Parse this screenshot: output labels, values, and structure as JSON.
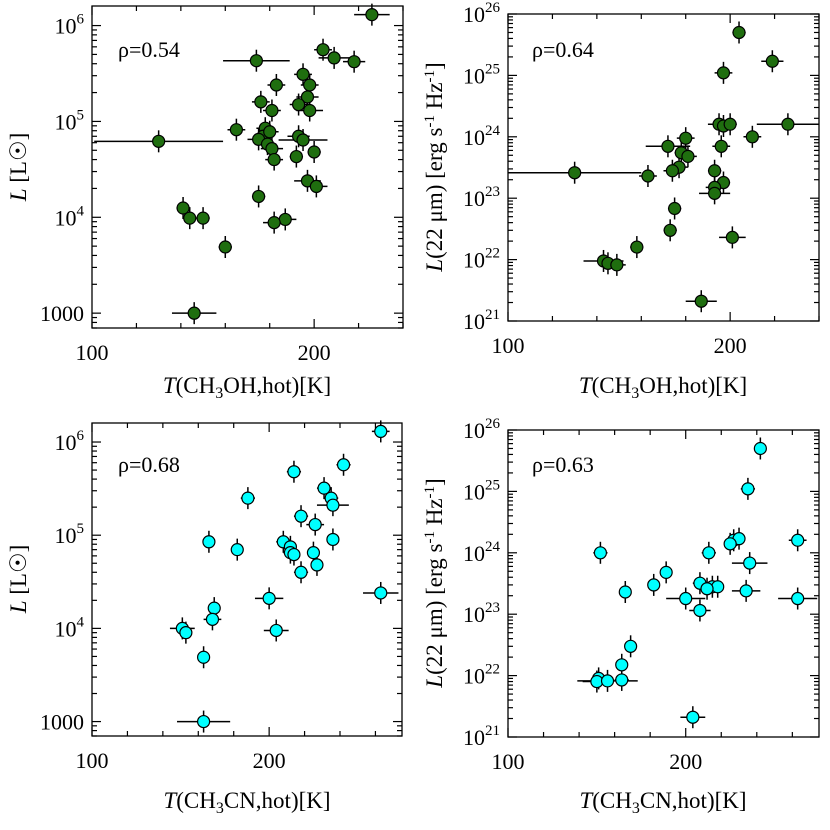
{
  "chart_data": [
    {
      "type": "scatter",
      "annotation": "ρ=0.54",
      "xlabel_italic": "T",
      "xlabel_pre": "(CH",
      "xlabel_sub": "3",
      "xlabel_post": "OH,hot)[K]",
      "ylabel_italic": "L",
      "ylabel_rest": " [L",
      "ylabel_sun": "☉",
      "ylabel_end": "]",
      "xscale": "linear",
      "yscale": "log",
      "xlim": [
        100,
        240
      ],
      "ylim": [
        700,
        1600000
      ],
      "xticks": [
        {
          "v": 100,
          "label": "100"
        },
        {
          "v": 200,
          "label": "200"
        }
      ],
      "yticks": [
        {
          "v": 1000,
          "base": "1000",
          "exp": ""
        },
        {
          "v": 10000,
          "base": "10",
          "exp": "4"
        },
        {
          "v": 100000,
          "base": "10",
          "exp": "5"
        },
        {
          "v": 1000000,
          "base": "10",
          "exp": "6"
        }
      ],
      "marker_color": "#1f6e0f",
      "points": [
        {
          "x": 226,
          "y": 1300000,
          "xerr": 8
        },
        {
          "x": 204,
          "y": 560000,
          "xerr": 4
        },
        {
          "x": 209,
          "y": 460000,
          "xerr": 7
        },
        {
          "x": 218,
          "y": 420000,
          "xerr": 5
        },
        {
          "x": 174,
          "y": 430000,
          "xerr": 15
        },
        {
          "x": 195,
          "y": 310000,
          "xerr": 4
        },
        {
          "x": 198,
          "y": 240000,
          "xerr": 4
        },
        {
          "x": 183,
          "y": 240000,
          "xerr": 4
        },
        {
          "x": 197,
          "y": 180000,
          "xerr": 5
        },
        {
          "x": 176,
          "y": 160000,
          "xerr": 4
        },
        {
          "x": 193,
          "y": 150000,
          "xerr": 4
        },
        {
          "x": 198,
          "y": 130000,
          "xerr": 6
        },
        {
          "x": 181,
          "y": 130000,
          "xerr": 4
        },
        {
          "x": 165,
          "y": 82000,
          "xerr": 4
        },
        {
          "x": 178,
          "y": 85000,
          "xerr": 4
        },
        {
          "x": 177,
          "y": 70000,
          "xerr": 4
        },
        {
          "x": 180,
          "y": 78000,
          "xerr": 4
        },
        {
          "x": 175,
          "y": 65000,
          "xerr": 5
        },
        {
          "x": 193,
          "y": 70000,
          "xerr": 5
        },
        {
          "x": 195,
          "y": 64000,
          "xerr": 11
        },
        {
          "x": 130,
          "y": 62000,
          "xerr": 29
        },
        {
          "x": 179,
          "y": 58000,
          "xerr": 4
        },
        {
          "x": 181,
          "y": 52000,
          "xerr": 5
        },
        {
          "x": 200,
          "y": 48000,
          "xerr": 3
        },
        {
          "x": 192,
          "y": 43000,
          "xerr": 3
        },
        {
          "x": 182,
          "y": 40000,
          "xerr": 4
        },
        {
          "x": 197,
          "y": 24000,
          "xerr": 6
        },
        {
          "x": 201,
          "y": 21000,
          "xerr": 5
        },
        {
          "x": 175,
          "y": 16500,
          "xerr": 3
        },
        {
          "x": 141,
          "y": 12500,
          "xerr": 3
        },
        {
          "x": 144,
          "y": 9800,
          "xerr": 3
        },
        {
          "x": 150,
          "y": 9800,
          "xerr": 3
        },
        {
          "x": 187,
          "y": 9500,
          "xerr": 5
        },
        {
          "x": 182,
          "y": 8800,
          "xerr": 5
        },
        {
          "x": 160,
          "y": 4900,
          "xerr": 3
        },
        {
          "x": 146,
          "y": 1000,
          "xerr": 10
        }
      ]
    },
    {
      "type": "scatter",
      "annotation": "ρ=0.64",
      "xlabel_italic": "T",
      "xlabel_pre": "(CH",
      "xlabel_sub": "3",
      "xlabel_post": "OH,hot)[K]",
      "ylabel_italic": "L",
      "ylabel_mid": "(22 μm) [erg s",
      "ylabel_exp1": "-1",
      "ylabel_mid2": " Hz",
      "ylabel_exp2": "-1",
      "ylabel_end": "]",
      "xscale": "linear",
      "yscale": "log",
      "xlim": [
        100,
        240
      ],
      "ylim": [
        1e+21,
        1e+26
      ],
      "xticks": [
        {
          "v": 100,
          "label": "100"
        },
        {
          "v": 200,
          "label": "200"
        }
      ],
      "yticks": [
        {
          "v": 1e+21,
          "base": "10",
          "exp": "21"
        },
        {
          "v": 1e+22,
          "base": "10",
          "exp": "22"
        },
        {
          "v": 1e+23,
          "base": "10",
          "exp": "23"
        },
        {
          "v": 1e+24,
          "base": "10",
          "exp": "24"
        },
        {
          "v": 1e+25,
          "base": "10",
          "exp": "25"
        },
        {
          "v": 1e+26,
          "base": "10",
          "exp": "26"
        }
      ],
      "marker_color": "#1f6e0f",
      "points": [
        {
          "x": 204,
          "y": 5e+25,
          "xerr": 3
        },
        {
          "x": 219,
          "y": 1.7e+25,
          "xerr": 5
        },
        {
          "x": 197,
          "y": 1.1e+25,
          "xerr": 4
        },
        {
          "x": 226,
          "y": 1.6e+24,
          "xerr": 14
        },
        {
          "x": 195,
          "y": 1.6e+24,
          "xerr": 5
        },
        {
          "x": 197,
          "y": 1.5e+24,
          "xerr": 3
        },
        {
          "x": 200,
          "y": 1.6e+24,
          "xerr": 3
        },
        {
          "x": 210,
          "y": 1e+24,
          "xerr": 4
        },
        {
          "x": 180,
          "y": 9.5e+23,
          "xerr": 4
        },
        {
          "x": 172,
          "y": 7e+23,
          "xerr": 10
        },
        {
          "x": 196,
          "y": 7e+23,
          "xerr": 4
        },
        {
          "x": 178,
          "y": 5.5e+23,
          "xerr": 3
        },
        {
          "x": 181,
          "y": 4.8e+23,
          "xerr": 4
        },
        {
          "x": 177,
          "y": 3.2e+23,
          "xerr": 4
        },
        {
          "x": 174,
          "y": 2.8e+23,
          "xerr": 4
        },
        {
          "x": 193,
          "y": 2.8e+23,
          "xerr": 3
        },
        {
          "x": 130,
          "y": 2.6e+23,
          "xerr": 30
        },
        {
          "x": 163,
          "y": 2.3e+23,
          "xerr": 4
        },
        {
          "x": 197,
          "y": 1.8e+23,
          "xerr": 3
        },
        {
          "x": 193,
          "y": 1.5e+23,
          "xerr": 4
        },
        {
          "x": 193,
          "y": 1.2e+23,
          "xerr": 7
        },
        {
          "x": 175,
          "y": 6.8e+22,
          "xerr": 3
        },
        {
          "x": 173,
          "y": 3e+22,
          "xerr": 3
        },
        {
          "x": 201,
          "y": 2.3e+22,
          "xerr": 6
        },
        {
          "x": 158,
          "y": 1.6e+22,
          "xerr": 3
        },
        {
          "x": 143,
          "y": 9.5e+21,
          "xerr": 9
        },
        {
          "x": 145,
          "y": 8.7e+21,
          "xerr": 4
        },
        {
          "x": 149,
          "y": 8.2e+21,
          "xerr": 4
        },
        {
          "x": 187,
          "y": 2.1e+21,
          "xerr": 7
        }
      ]
    },
    {
      "type": "scatter",
      "annotation": "ρ=0.68",
      "xlabel_italic": "T",
      "xlabel_pre": "(CH",
      "xlabel_sub": "3",
      "xlabel_post": "CN,hot)[K]",
      "ylabel_italic": "L",
      "ylabel_rest": " [L",
      "ylabel_sun": "☉",
      "ylabel_end": "]",
      "xscale": "linear",
      "yscale": "log",
      "xlim": [
        100,
        275
      ],
      "ylim": [
        700,
        1600000
      ],
      "xticks": [
        {
          "v": 100,
          "label": "100"
        },
        {
          "v": 200,
          "label": "200"
        }
      ],
      "yticks": [
        {
          "v": 1000,
          "base": "1000",
          "exp": ""
        },
        {
          "v": 10000,
          "base": "10",
          "exp": "4"
        },
        {
          "v": 100000,
          "base": "10",
          "exp": "5"
        },
        {
          "v": 1000000,
          "base": "10",
          "exp": "6"
        }
      ],
      "marker_color": "#00ffff",
      "points": [
        {
          "x": 263,
          "y": 1300000,
          "xerr": 5
        },
        {
          "x": 242,
          "y": 570000,
          "xerr": 4
        },
        {
          "x": 214,
          "y": 480000,
          "xerr": 4
        },
        {
          "x": 231,
          "y": 320000,
          "xerr": 4
        },
        {
          "x": 188,
          "y": 250000,
          "xerr": 4
        },
        {
          "x": 235,
          "y": 250000,
          "xerr": 4
        },
        {
          "x": 236,
          "y": 210000,
          "xerr": 9
        },
        {
          "x": 218,
          "y": 160000,
          "xerr": 4
        },
        {
          "x": 226,
          "y": 130000,
          "xerr": 5
        },
        {
          "x": 236,
          "y": 90000,
          "xerr": 3
        },
        {
          "x": 166,
          "y": 85000,
          "xerr": 3
        },
        {
          "x": 208,
          "y": 85000,
          "xerr": 4
        },
        {
          "x": 212,
          "y": 75000,
          "xerr": 3
        },
        {
          "x": 182,
          "y": 70000,
          "xerr": 3
        },
        {
          "x": 212,
          "y": 65000,
          "xerr": 4
        },
        {
          "x": 214,
          "y": 62000,
          "xerr": 3
        },
        {
          "x": 225,
          "y": 65000,
          "xerr": 3
        },
        {
          "x": 227,
          "y": 48000,
          "xerr": 3
        },
        {
          "x": 218,
          "y": 40000,
          "xerr": 4
        },
        {
          "x": 263,
          "y": 24000,
          "xerr": 10
        },
        {
          "x": 200,
          "y": 21000,
          "xerr": 8
        },
        {
          "x": 169,
          "y": 16500,
          "xerr": 3
        },
        {
          "x": 168,
          "y": 12500,
          "xerr": 5
        },
        {
          "x": 151,
          "y": 10000,
          "xerr": 7
        },
        {
          "x": 153,
          "y": 9000,
          "xerr": 3
        },
        {
          "x": 204,
          "y": 9500,
          "xerr": 7
        },
        {
          "x": 163,
          "y": 4900,
          "xerr": 3
        },
        {
          "x": 163,
          "y": 1000,
          "xerr": 15
        }
      ]
    },
    {
      "type": "scatter",
      "annotation": "ρ=0.63",
      "xlabel_italic": "T",
      "xlabel_pre": "(CH",
      "xlabel_sub": "3",
      "xlabel_post": "CN,hot)[K]",
      "ylabel_italic": "L",
      "ylabel_mid": "(22 μm) [erg s",
      "ylabel_exp1": "-1",
      "ylabel_mid2": " Hz",
      "ylabel_exp2": "-1",
      "ylabel_end": "]",
      "xscale": "linear",
      "yscale": "log",
      "xlim": [
        100,
        275
      ],
      "ylim": [
        1e+21,
        1e+26
      ],
      "xticks": [
        {
          "v": 100,
          "label": "100"
        },
        {
          "v": 200,
          "label": "200"
        }
      ],
      "yticks": [
        {
          "v": 1e+21,
          "base": "10",
          "exp": "21"
        },
        {
          "v": 1e+22,
          "base": "10",
          "exp": "22"
        },
        {
          "v": 1e+23,
          "base": "10",
          "exp": "23"
        },
        {
          "v": 1e+24,
          "base": "10",
          "exp": "24"
        },
        {
          "v": 1e+25,
          "base": "10",
          "exp": "25"
        },
        {
          "v": 1e+26,
          "base": "10",
          "exp": "26"
        }
      ],
      "marker_color": "#00ffff",
      "points": [
        {
          "x": 242,
          "y": 5e+25,
          "xerr": 3
        },
        {
          "x": 235,
          "y": 1.1e+25,
          "xerr": 4
        },
        {
          "x": 227,
          "y": 1.6e+24,
          "xerr": 4
        },
        {
          "x": 230,
          "y": 1.7e+24,
          "xerr": 3
        },
        {
          "x": 263,
          "y": 1.6e+24,
          "xerr": 5
        },
        {
          "x": 225,
          "y": 1.4e+24,
          "xerr": 3
        },
        {
          "x": 152,
          "y": 1e+24,
          "xerr": 4
        },
        {
          "x": 213,
          "y": 1e+24,
          "xerr": 4
        },
        {
          "x": 236,
          "y": 6.8e+23,
          "xerr": 10
        },
        {
          "x": 189,
          "y": 4.8e+23,
          "xerr": 3
        },
        {
          "x": 208,
          "y": 3.2e+23,
          "xerr": 4
        },
        {
          "x": 182,
          "y": 3e+23,
          "xerr": 3
        },
        {
          "x": 215,
          "y": 2.8e+23,
          "xerr": 4
        },
        {
          "x": 218,
          "y": 2.8e+23,
          "xerr": 3
        },
        {
          "x": 212,
          "y": 2.6e+23,
          "xerr": 3
        },
        {
          "x": 234,
          "y": 2.4e+23,
          "xerr": 8
        },
        {
          "x": 166,
          "y": 2.3e+23,
          "xerr": 3
        },
        {
          "x": 200,
          "y": 1.8e+23,
          "xerr": 11
        },
        {
          "x": 263,
          "y": 1.8e+23,
          "xerr": 11
        },
        {
          "x": 208,
          "y": 1.15e+23,
          "xerr": 6
        },
        {
          "x": 169,
          "y": 3e+22,
          "xerr": 3
        },
        {
          "x": 164,
          "y": 1.5e+22,
          "xerr": 3
        },
        {
          "x": 151,
          "y": 9e+21,
          "xerr": 4
        },
        {
          "x": 164,
          "y": 8.5e+21,
          "xerr": 4
        },
        {
          "x": 150,
          "y": 8e+21,
          "xerr": 8
        },
        {
          "x": 156,
          "y": 8.2e+21,
          "xerr": 17
        },
        {
          "x": 204,
          "y": 2.1e+21,
          "xerr": 7
        }
      ]
    }
  ]
}
